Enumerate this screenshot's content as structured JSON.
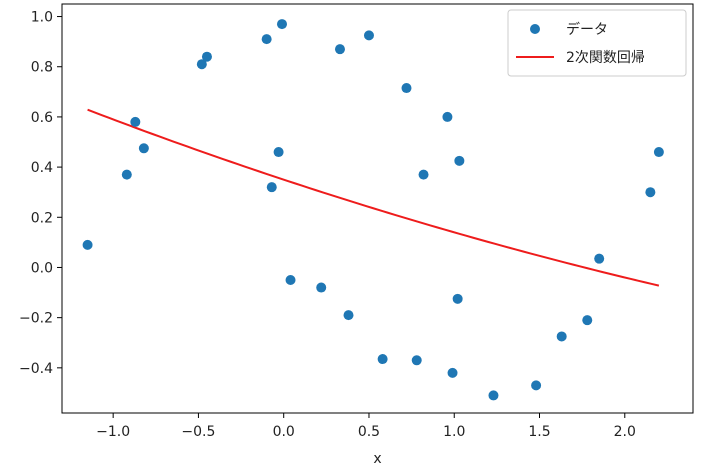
{
  "chart_data": {
    "type": "scatter",
    "title": "",
    "xlabel": "x",
    "ylabel": "",
    "xlim": [
      -1.3,
      2.4
    ],
    "ylim": [
      -0.58,
      1.05
    ],
    "x_ticks": [
      -1.0,
      -0.5,
      0.0,
      0.5,
      1.0,
      1.5,
      2.0
    ],
    "x_tick_labels": [
      "−1.0",
      "−0.5",
      "0.0",
      "0.5",
      "1.0",
      "1.5",
      "2.0"
    ],
    "y_ticks": [
      -0.4,
      -0.2,
      0.0,
      0.2,
      0.4,
      0.6,
      0.8,
      1.0
    ],
    "y_tick_labels": [
      "−0.4",
      "−0.2",
      "0.0",
      "0.2",
      "0.4",
      "0.6",
      "0.8",
      "1.0"
    ],
    "grid": false,
    "legend_position": "top-right",
    "series": [
      {
        "name": "データ",
        "kind": "scatter",
        "color": "#1f77b4",
        "points": [
          [
            -1.15,
            0.09
          ],
          [
            -0.92,
            0.37
          ],
          [
            -0.87,
            0.58
          ],
          [
            -0.82,
            0.475
          ],
          [
            -0.48,
            0.81
          ],
          [
            -0.45,
            0.84
          ],
          [
            -0.1,
            0.91
          ],
          [
            -0.07,
            0.32
          ],
          [
            -0.03,
            0.46
          ],
          [
            -0.01,
            0.97
          ],
          [
            0.04,
            -0.05
          ],
          [
            0.22,
            -0.08
          ],
          [
            0.33,
            0.87
          ],
          [
            0.38,
            -0.19
          ],
          [
            0.5,
            0.925
          ],
          [
            0.58,
            -0.365
          ],
          [
            0.72,
            0.715
          ],
          [
            0.78,
            -0.37
          ],
          [
            0.82,
            0.37
          ],
          [
            0.96,
            0.6
          ],
          [
            0.99,
            -0.42
          ],
          [
            1.02,
            -0.125
          ],
          [
            1.03,
            0.425
          ],
          [
            1.23,
            -0.51
          ],
          [
            1.48,
            -0.47
          ],
          [
            1.63,
            -0.275
          ],
          [
            1.78,
            -0.21
          ],
          [
            1.85,
            0.035
          ],
          [
            2.15,
            0.3
          ],
          [
            2.2,
            0.46
          ]
        ]
      },
      {
        "name": "2次関数回帰",
        "kind": "line",
        "color": "#ee1c1c",
        "x_range": [
          -1.15,
          2.2
        ],
        "coefficients": [
          0.35,
          -0.225,
          0.015
        ]
      }
    ]
  }
}
